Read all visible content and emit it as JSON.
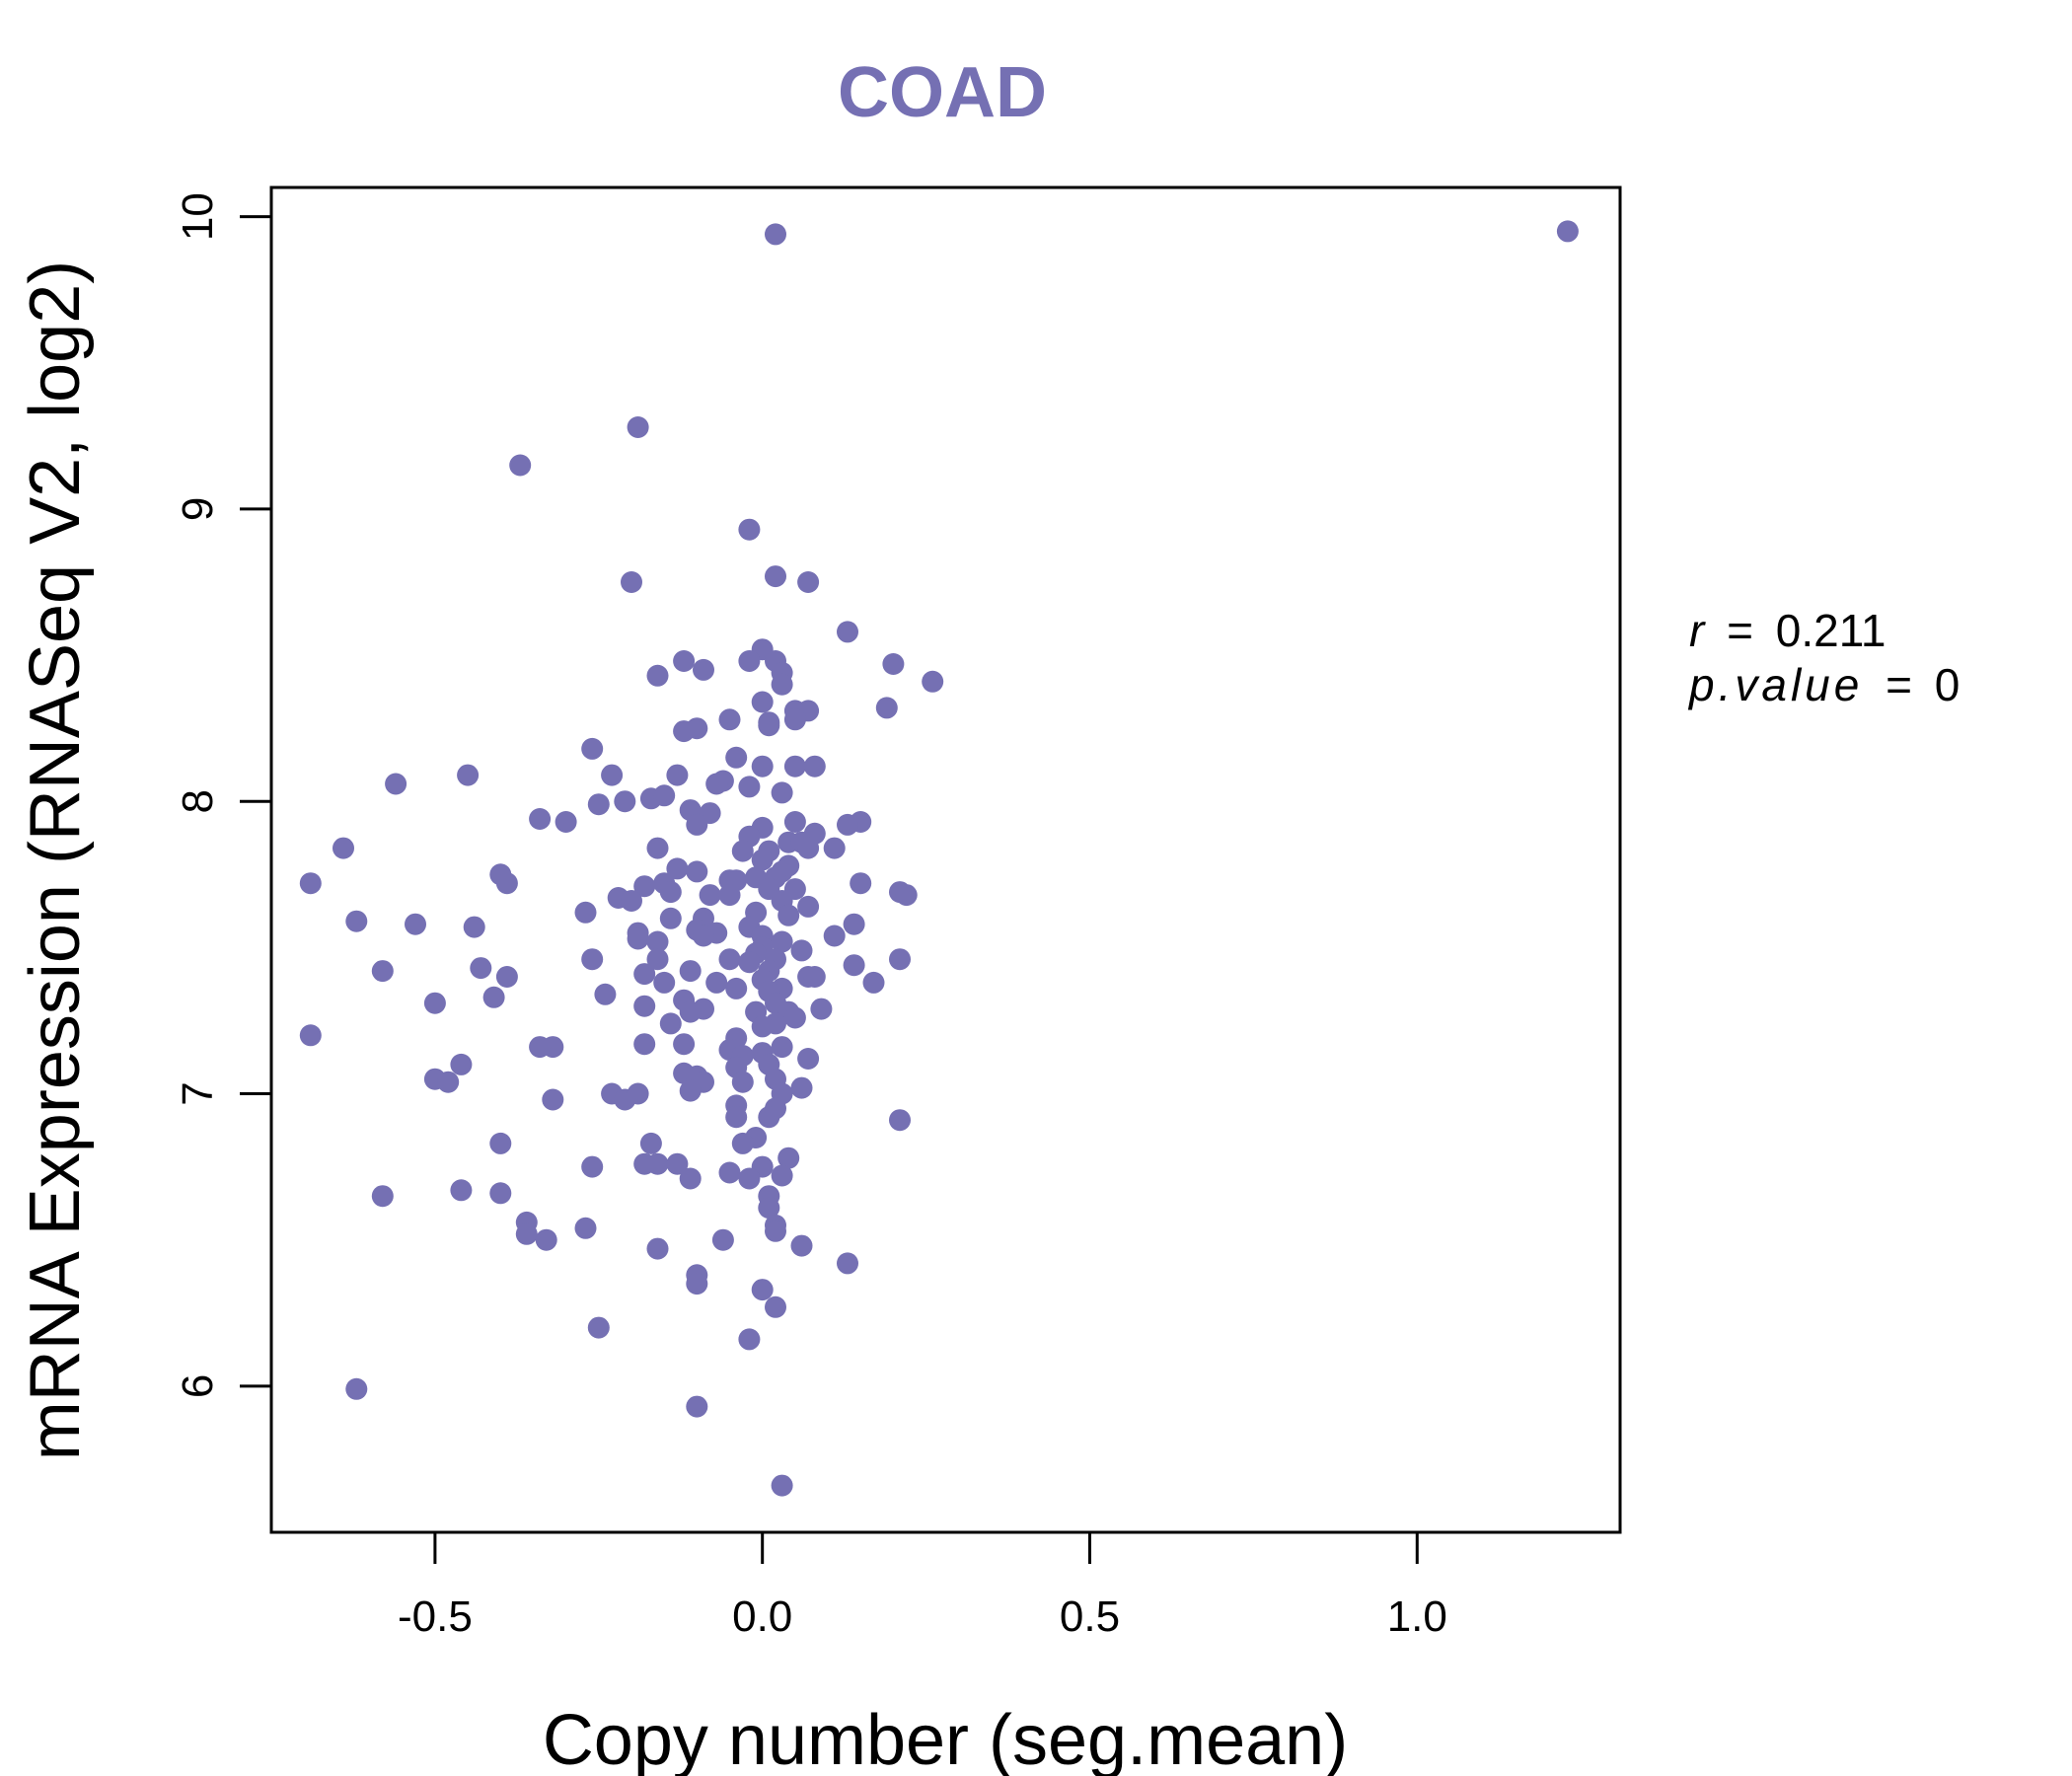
{
  "chart_data": {
    "type": "scatter",
    "title": "COAD",
    "xlabel": "Copy number (seg.mean)",
    "ylabel": "mRNA Expression (RNASeq V2, log2)",
    "xlim": [
      -0.75,
      1.31
    ],
    "ylim": [
      5.5,
      10.1
    ],
    "xticks": [
      -0.5,
      0.0,
      0.5,
      1.0
    ],
    "xtick_labels": [
      "-0.5",
      "0.0",
      "0.5",
      "1.0"
    ],
    "yticks": [
      6,
      7,
      8,
      9,
      10
    ],
    "ytick_labels": [
      "6",
      "7",
      "8",
      "9",
      "10"
    ],
    "grid": false,
    "legend": "none",
    "colors": {
      "points": "#7570b3",
      "title": "#7570b3",
      "axis": "#000000"
    },
    "annotations": {
      "r_label": "r",
      "r_value": "0.211",
      "p_label": "p.value",
      "p_value": "0",
      "equals": "="
    },
    "points": [
      [
        1.23,
        9.95
      ],
      [
        0.02,
        9.94
      ],
      [
        -0.19,
        9.28
      ],
      [
        -0.37,
        9.15
      ],
      [
        -0.02,
        8.93
      ],
      [
        0.02,
        8.77
      ],
      [
        0.07,
        8.75
      ],
      [
        -0.2,
        8.75
      ],
      [
        0.13,
        8.58
      ],
      [
        0.0,
        8.52
      ],
      [
        0.02,
        8.48
      ],
      [
        0.2,
        8.47
      ],
      [
        -0.02,
        8.48
      ],
      [
        -0.12,
        8.48
      ],
      [
        0.03,
        8.44
      ],
      [
        -0.16,
        8.43
      ],
      [
        -0.09,
        8.45
      ],
      [
        0.26,
        8.41
      ],
      [
        0.03,
        8.4
      ],
      [
        0.19,
        8.32
      ],
      [
        0.0,
        8.34
      ],
      [
        0.05,
        8.31
      ],
      [
        0.07,
        8.31
      ],
      [
        0.05,
        8.28
      ],
      [
        0.01,
        8.26
      ],
      [
        -0.05,
        8.28
      ],
      [
        -0.1,
        8.25
      ],
      [
        -0.12,
        8.24
      ],
      [
        0.01,
        8.27
      ],
      [
        -0.26,
        8.18
      ],
      [
        -0.04,
        8.15
      ],
      [
        0.0,
        8.12
      ],
      [
        0.05,
        8.12
      ],
      [
        0.08,
        8.12
      ],
      [
        -0.06,
        8.07
      ],
      [
        -0.23,
        8.09
      ],
      [
        -0.13,
        8.09
      ],
      [
        -0.45,
        8.09
      ],
      [
        -0.56,
        8.06
      ],
      [
        -0.02,
        8.05
      ],
      [
        0.03,
        8.03
      ],
      [
        -0.07,
        8.06
      ],
      [
        -0.17,
        8.01
      ],
      [
        -0.15,
        8.02
      ],
      [
        -0.21,
        8.0
      ],
      [
        -0.25,
        7.99
      ],
      [
        -0.11,
        7.97
      ],
      [
        -0.08,
        7.96
      ],
      [
        -0.3,
        7.93
      ],
      [
        -0.34,
        7.94
      ],
      [
        -0.1,
        7.92
      ],
      [
        0.15,
        7.93
      ],
      [
        0.13,
        7.92
      ],
      [
        0.05,
        7.93
      ],
      [
        0.0,
        7.91
      ],
      [
        -0.02,
        7.88
      ],
      [
        0.08,
        7.89
      ],
      [
        0.04,
        7.86
      ],
      [
        0.06,
        7.86
      ],
      [
        0.11,
        7.84
      ],
      [
        -0.16,
        7.84
      ],
      [
        -0.64,
        7.84
      ],
      [
        0.07,
        7.84
      ],
      [
        0.01,
        7.83
      ],
      [
        -0.03,
        7.83
      ],
      [
        0.0,
        7.8
      ],
      [
        0.04,
        7.78
      ],
      [
        -0.13,
        7.77
      ],
      [
        -0.1,
        7.76
      ],
      [
        0.03,
        7.76
      ],
      [
        -0.01,
        7.74
      ],
      [
        0.02,
        7.74
      ],
      [
        -0.4,
        7.75
      ],
      [
        -0.05,
        7.73
      ],
      [
        -0.39,
        7.72
      ],
      [
        -0.04,
        7.73
      ],
      [
        -0.15,
        7.72
      ],
      [
        -0.18,
        7.71
      ],
      [
        0.15,
        7.72
      ],
      [
        -0.69,
        7.72
      ],
      [
        0.01,
        7.7
      ],
      [
        0.05,
        7.7
      ],
      [
        0.21,
        7.69
      ],
      [
        0.22,
        7.68
      ],
      [
        -0.22,
        7.67
      ],
      [
        -0.14,
        7.69
      ],
      [
        -0.08,
        7.68
      ],
      [
        -0.05,
        7.68
      ],
      [
        -0.2,
        7.66
      ],
      [
        0.03,
        7.66
      ],
      [
        0.07,
        7.64
      ],
      [
        -0.01,
        7.62
      ],
      [
        -0.27,
        7.62
      ],
      [
        -0.14,
        7.6
      ],
      [
        -0.09,
        7.6
      ],
      [
        0.04,
        7.61
      ],
      [
        -0.62,
        7.59
      ],
      [
        -0.53,
        7.58
      ],
      [
        0.14,
        7.58
      ],
      [
        -0.44,
        7.57
      ],
      [
        -0.02,
        7.57
      ],
      [
        -0.1,
        7.56
      ],
      [
        -0.19,
        7.55
      ],
      [
        -0.07,
        7.55
      ],
      [
        0.0,
        7.54
      ],
      [
        -0.09,
        7.54
      ],
      [
        0.11,
        7.54
      ],
      [
        -0.19,
        7.53
      ],
      [
        0.03,
        7.52
      ],
      [
        -0.16,
        7.52
      ],
      [
        0.0,
        7.5
      ],
      [
        0.06,
        7.49
      ],
      [
        -0.01,
        7.48
      ],
      [
        -0.16,
        7.46
      ],
      [
        -0.05,
        7.46
      ],
      [
        0.02,
        7.46
      ],
      [
        -0.26,
        7.46
      ],
      [
        0.21,
        7.46
      ],
      [
        -0.02,
        7.45
      ],
      [
        0.14,
        7.44
      ],
      [
        -0.43,
        7.43
      ],
      [
        0.01,
        7.42
      ],
      [
        -0.11,
        7.42
      ],
      [
        -0.18,
        7.41
      ],
      [
        -0.39,
        7.4
      ],
      [
        -0.58,
        7.42
      ],
      [
        0.07,
        7.4
      ],
      [
        0.08,
        7.4
      ],
      [
        0.0,
        7.39
      ],
      [
        -0.15,
        7.38
      ],
      [
        -0.07,
        7.38
      ],
      [
        0.17,
        7.38
      ],
      [
        0.03,
        7.36
      ],
      [
        -0.04,
        7.36
      ],
      [
        0.01,
        7.35
      ],
      [
        -0.24,
        7.34
      ],
      [
        -0.41,
        7.33
      ],
      [
        -0.12,
        7.32
      ],
      [
        -0.5,
        7.31
      ],
      [
        0.02,
        7.31
      ],
      [
        -0.18,
        7.3
      ],
      [
        0.09,
        7.29
      ],
      [
        -0.09,
        7.29
      ],
      [
        -0.11,
        7.28
      ],
      [
        0.04,
        7.28
      ],
      [
        -0.01,
        7.28
      ],
      [
        0.05,
        7.26
      ],
      [
        -0.14,
        7.24
      ],
      [
        0.02,
        7.24
      ],
      [
        0.0,
        7.23
      ],
      [
        -0.69,
        7.2
      ],
      [
        -0.04,
        7.19
      ],
      [
        -0.12,
        7.17
      ],
      [
        -0.32,
        7.16
      ],
      [
        -0.34,
        7.16
      ],
      [
        -0.18,
        7.17
      ],
      [
        0.03,
        7.16
      ],
      [
        -0.05,
        7.15
      ],
      [
        0.0,
        7.14
      ],
      [
        -0.03,
        7.13
      ],
      [
        0.07,
        7.12
      ],
      [
        -0.46,
        7.1
      ],
      [
        0.01,
        7.1
      ],
      [
        -0.04,
        7.09
      ],
      [
        -0.12,
        7.07
      ],
      [
        -0.1,
        7.06
      ],
      [
        -0.5,
        7.05
      ],
      [
        0.02,
        7.05
      ],
      [
        -0.03,
        7.04
      ],
      [
        -0.09,
        7.04
      ],
      [
        -0.48,
        7.04
      ],
      [
        0.06,
        7.02
      ],
      [
        -0.11,
        7.01
      ],
      [
        0.03,
        7.0
      ],
      [
        -0.23,
        7.0
      ],
      [
        -0.21,
        6.98
      ],
      [
        -0.19,
        7.0
      ],
      [
        -0.32,
        6.98
      ],
      [
        -0.04,
        6.96
      ],
      [
        0.02,
        6.95
      ],
      [
        0.01,
        6.92
      ],
      [
        -0.04,
        6.92
      ],
      [
        0.21,
        6.91
      ],
      [
        -0.01,
        6.85
      ],
      [
        -0.03,
        6.83
      ],
      [
        -0.4,
        6.83
      ],
      [
        -0.17,
        6.83
      ],
      [
        0.04,
        6.78
      ],
      [
        -0.16,
        6.76
      ],
      [
        -0.13,
        6.76
      ],
      [
        -0.18,
        6.76
      ],
      [
        -0.26,
        6.75
      ],
      [
        0.0,
        6.75
      ],
      [
        -0.05,
        6.73
      ],
      [
        0.03,
        6.72
      ],
      [
        -0.02,
        6.71
      ],
      [
        -0.11,
        6.71
      ],
      [
        -0.46,
        6.67
      ],
      [
        -0.4,
        6.66
      ],
      [
        0.01,
        6.65
      ],
      [
        -0.58,
        6.65
      ],
      [
        0.01,
        6.61
      ],
      [
        -0.36,
        6.56
      ],
      [
        0.02,
        6.55
      ],
      [
        -0.27,
        6.54
      ],
      [
        0.02,
        6.53
      ],
      [
        -0.36,
        6.52
      ],
      [
        -0.33,
        6.5
      ],
      [
        -0.06,
        6.5
      ],
      [
        0.06,
        6.48
      ],
      [
        -0.16,
        6.47
      ],
      [
        0.13,
        6.42
      ],
      [
        -0.1,
        6.38
      ],
      [
        -0.1,
        6.35
      ],
      [
        0.0,
        6.33
      ],
      [
        0.02,
        6.27
      ],
      [
        -0.25,
        6.2
      ],
      [
        -0.02,
        6.16
      ],
      [
        -0.62,
        5.99
      ],
      [
        -0.1,
        5.93
      ],
      [
        0.03,
        5.66
      ]
    ]
  }
}
